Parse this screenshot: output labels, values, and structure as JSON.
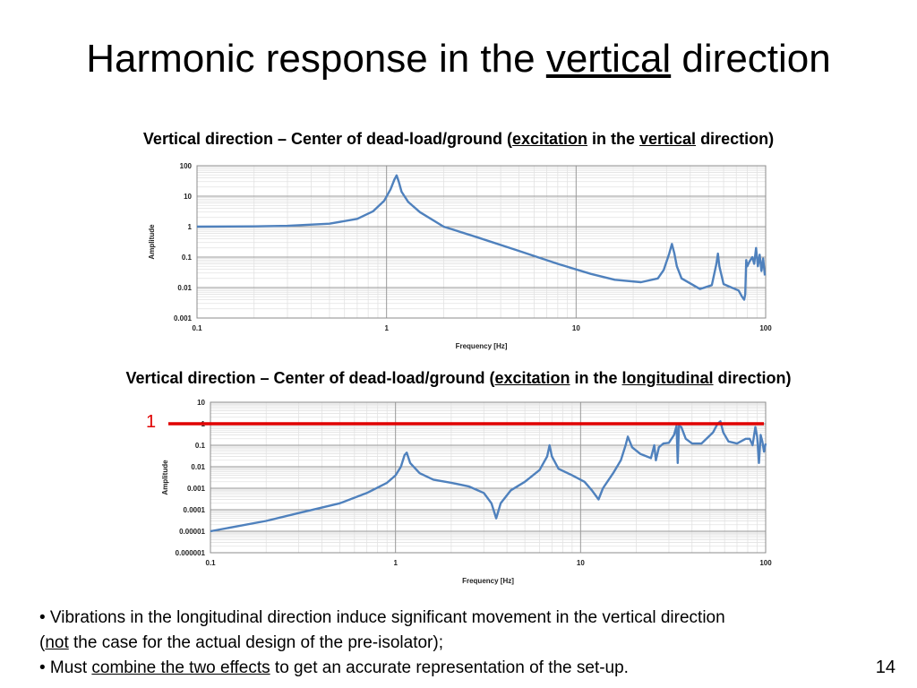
{
  "slide": {
    "title_part1": "Harmonic response in the ",
    "title_underlined": "vertical",
    "title_part2": " direction",
    "page_number": "14"
  },
  "chart1_heading": {
    "part1": "Vertical direction – Center of dead-load/ground (",
    "u1": "excitation",
    "part2": " in the ",
    "u2": "vertical",
    "part3": " direction)"
  },
  "chart2_heading": {
    "part1": "Vertical direction – Center of dead-load/ground (",
    "u1": "excitation",
    "part2": " in the ",
    "u2": "longitudinal",
    "part3": " direction)"
  },
  "annotation": {
    "label": "1",
    "line_value": 1,
    "color": "#e00000"
  },
  "bullets": {
    "b1_line1": "• Vibrations in the longitudinal direction induce significant movement in the vertical direction",
    "b1_l2_pre": "(",
    "b1_l2_u": "not",
    "b1_l2_post": " the case for the actual design of the pre-isolator);",
    "b2_pre": "• Must ",
    "b2_u": "combine the two effects",
    "b2_post": " to get an accurate representation of the set-up."
  },
  "chart_data": [
    {
      "type": "line",
      "xlabel": "Frequency [Hz]",
      "ylabel": "Amplitude",
      "x_scale": "log",
      "y_scale": "log",
      "xlim": [
        0.1,
        100
      ],
      "ylim": [
        0.001,
        100
      ],
      "x_ticks": [
        "0.1",
        "1",
        "10",
        "100"
      ],
      "y_ticks": [
        "100",
        "10",
        "1",
        "0.1",
        "0.01",
        "0.001"
      ],
      "grid": true,
      "color": "#4f81bd",
      "series": [
        {
          "points": [
            [
              0.1,
              1.0
            ],
            [
              0.2,
              1.02
            ],
            [
              0.3,
              1.06
            ],
            [
              0.5,
              1.25
            ],
            [
              0.7,
              1.8
            ],
            [
              0.85,
              3.2
            ],
            [
              0.97,
              7
            ],
            [
              1.05,
              17
            ],
            [
              1.1,
              35
            ],
            [
              1.13,
              48
            ],
            [
              1.16,
              30
            ],
            [
              1.2,
              14
            ],
            [
              1.3,
              6.5
            ],
            [
              1.5,
              3.0
            ],
            [
              2,
              1.0
            ],
            [
              3,
              0.45
            ],
            [
              5,
              0.16
            ],
            [
              8,
              0.06
            ],
            [
              12,
              0.028
            ],
            [
              16,
              0.018
            ],
            [
              22,
              0.015
            ],
            [
              27,
              0.02
            ],
            [
              29,
              0.038
            ],
            [
              31,
              0.13
            ],
            [
              32,
              0.27
            ],
            [
              33,
              0.13
            ],
            [
              34,
              0.05
            ],
            [
              36,
              0.02
            ],
            [
              45,
              0.009
            ],
            [
              52,
              0.012
            ],
            [
              55,
              0.06
            ],
            [
              56,
              0.13
            ],
            [
              57,
              0.05
            ],
            [
              60,
              0.013
            ],
            [
              72,
              0.008
            ],
            [
              75,
              0.005
            ],
            [
              77,
              0.004
            ],
            [
              78,
              0.006
            ],
            [
              79,
              0.08
            ],
            [
              80,
              0.05
            ],
            [
              82,
              0.07
            ],
            [
              85,
              0.1
            ],
            [
              87,
              0.06
            ],
            [
              89,
              0.2
            ],
            [
              91,
              0.05
            ],
            [
              93,
              0.12
            ],
            [
              95,
              0.035
            ],
            [
              97,
              0.09
            ],
            [
              99,
              0.025
            ]
          ]
        }
      ]
    },
    {
      "type": "line",
      "xlabel": "Frequency [Hz]",
      "ylabel": "Amplitude",
      "x_scale": "log",
      "y_scale": "log",
      "xlim": [
        0.1,
        100
      ],
      "ylim": [
        1e-06,
        10
      ],
      "x_ticks": [
        "0.1",
        "1",
        "10",
        "100"
      ],
      "y_ticks": [
        "10",
        "1",
        "0.1",
        "0.01",
        "0.001",
        "0.0001",
        "0.00001",
        "0.000001"
      ],
      "grid": true,
      "color": "#4f81bd",
      "series": [
        {
          "points": [
            [
              0.1,
              1e-05
            ],
            [
              0.2,
              3e-05
            ],
            [
              0.3,
              7e-05
            ],
            [
              0.5,
              0.0002
            ],
            [
              0.7,
              0.0006
            ],
            [
              0.9,
              0.0018
            ],
            [
              1.0,
              0.004
            ],
            [
              1.07,
              0.01
            ],
            [
              1.12,
              0.035
            ],
            [
              1.15,
              0.045
            ],
            [
              1.2,
              0.015
            ],
            [
              1.35,
              0.005
            ],
            [
              1.6,
              0.0025
            ],
            [
              2,
              0.0018
            ],
            [
              2.5,
              0.0012
            ],
            [
              3,
              0.0006
            ],
            [
              3.3,
              0.0002
            ],
            [
              3.5,
              4e-05
            ],
            [
              3.7,
              0.0002
            ],
            [
              4.2,
              0.0008
            ],
            [
              5,
              0.002
            ],
            [
              6,
              0.007
            ],
            [
              6.6,
              0.03
            ],
            [
              6.8,
              0.1
            ],
            [
              7.0,
              0.03
            ],
            [
              7.6,
              0.008
            ],
            [
              9,
              0.004
            ],
            [
              10.5,
              0.002
            ],
            [
              11.5,
              0.0008
            ],
            [
              12.5,
              0.0003
            ],
            [
              13.2,
              0.001
            ],
            [
              15,
              0.005
            ],
            [
              16.5,
              0.02
            ],
            [
              17.5,
              0.1
            ],
            [
              18,
              0.25
            ],
            [
              19,
              0.08
            ],
            [
              21,
              0.04
            ],
            [
              24,
              0.025
            ],
            [
              25,
              0.1
            ],
            [
              25.5,
              0.02
            ],
            [
              26.5,
              0.08
            ],
            [
              28,
              0.12
            ],
            [
              30,
              0.13
            ],
            [
              32,
              0.3
            ],
            [
              33,
              0.8
            ],
            [
              33.5,
              0.015
            ],
            [
              34,
              0.8
            ],
            [
              35,
              0.7
            ],
            [
              37,
              0.2
            ],
            [
              40,
              0.12
            ],
            [
              45,
              0.12
            ],
            [
              52,
              0.4
            ],
            [
              55,
              1.0
            ],
            [
              57,
              1.3
            ],
            [
              59,
              0.4
            ],
            [
              63,
              0.15
            ],
            [
              70,
              0.12
            ],
            [
              78,
              0.2
            ],
            [
              82,
              0.2
            ],
            [
              85,
              0.1
            ],
            [
              88,
              0.7
            ],
            [
              90,
              0.25
            ],
            [
              92,
              0.015
            ],
            [
              94,
              0.3
            ],
            [
              96,
              0.15
            ],
            [
              98,
              0.05
            ],
            [
              100,
              0.12
            ]
          ]
        }
      ]
    }
  ]
}
